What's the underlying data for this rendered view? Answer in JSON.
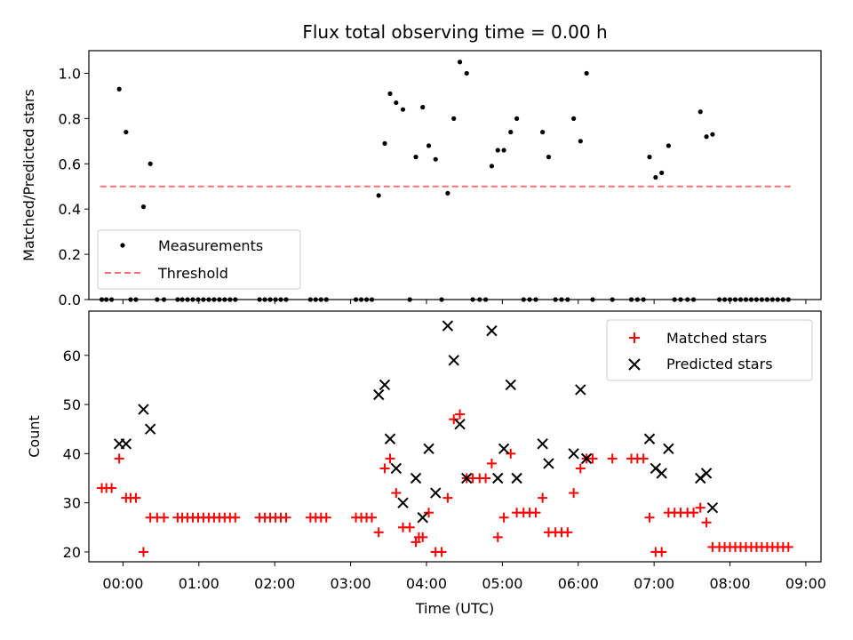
{
  "chart_data": [
    {
      "type": "scatter",
      "title": "Flux total observing time = 0.00 h",
      "xlabel": "",
      "ylabel": "Matched/Predicted stars",
      "xlim": [
        -0.45,
        9.2
      ],
      "ylim": [
        0,
        1.1
      ],
      "yticks": [
        "0.0",
        "0.2",
        "0.4",
        "0.6",
        "0.8",
        "1.0"
      ],
      "legend_position": "lower-left",
      "legend": [
        {
          "label": "Measurements",
          "marker": "dot",
          "color": "#000000"
        },
        {
          "label": "Threshold",
          "marker": "dashed-line",
          "color": "#ff7070"
        }
      ],
      "threshold": {
        "value": 0.5,
        "x_range": [
          -0.3,
          8.8
        ],
        "color": "#ff7070"
      },
      "series": [
        {
          "name": "Measurements",
          "color": "#000000",
          "points": [
            [
              -0.28,
              0
            ],
            [
              -0.22,
              0
            ],
            [
              -0.15,
              0
            ],
            [
              -0.05,
              0.93
            ],
            [
              0.04,
              0.74
            ],
            [
              0.1,
              0
            ],
            [
              0.17,
              0
            ],
            [
              0.27,
              0.41
            ],
            [
              0.36,
              0.6
            ],
            [
              0.45,
              0
            ],
            [
              0.54,
              0
            ],
            [
              0.72,
              0
            ],
            [
              0.78,
              0
            ],
            [
              0.85,
              0
            ],
            [
              0.92,
              0
            ],
            [
              0.99,
              0
            ],
            [
              1.06,
              0
            ],
            [
              1.13,
              0
            ],
            [
              1.2,
              0
            ],
            [
              1.27,
              0
            ],
            [
              1.34,
              0
            ],
            [
              1.41,
              0
            ],
            [
              1.48,
              0
            ],
            [
              1.8,
              0
            ],
            [
              1.87,
              0
            ],
            [
              1.94,
              0
            ],
            [
              2.01,
              0
            ],
            [
              2.08,
              0
            ],
            [
              2.15,
              0
            ],
            [
              2.47,
              0
            ],
            [
              2.54,
              0
            ],
            [
              2.61,
              0
            ],
            [
              2.68,
              0
            ],
            [
              3.07,
              0
            ],
            [
              3.14,
              0
            ],
            [
              3.21,
              0
            ],
            [
              3.28,
              0
            ],
            [
              3.37,
              0.46
            ],
            [
              3.45,
              0.69
            ],
            [
              3.52,
              0.91
            ],
            [
              3.6,
              0.87
            ],
            [
              3.69,
              0.84
            ],
            [
              3.78,
              0
            ],
            [
              3.86,
              0.63
            ],
            [
              3.95,
              0.85
            ],
            [
              4.03,
              0.68
            ],
            [
              4.12,
              0.62
            ],
            [
              4.2,
              0
            ],
            [
              4.28,
              0.47
            ],
            [
              4.36,
              0.8
            ],
            [
              4.44,
              1.05
            ],
            [
              4.53,
              1.0
            ],
            [
              4.61,
              0
            ],
            [
              4.7,
              0
            ],
            [
              4.78,
              0
            ],
            [
              4.86,
              0.59
            ],
            [
              4.94,
              0.66
            ],
            [
              5.02,
              0.66
            ],
            [
              5.11,
              0.74
            ],
            [
              5.19,
              0.8
            ],
            [
              5.28,
              0
            ],
            [
              5.36,
              0
            ],
            [
              5.44,
              0
            ],
            [
              5.53,
              0.74
            ],
            [
              5.61,
              0.63
            ],
            [
              5.7,
              0
            ],
            [
              5.78,
              0
            ],
            [
              5.86,
              0
            ],
            [
              5.94,
              0.8
            ],
            [
              6.03,
              0.7
            ],
            [
              6.11,
              1.0
            ],
            [
              6.19,
              0
            ],
            [
              6.45,
              0
            ],
            [
              6.7,
              0
            ],
            [
              6.78,
              0
            ],
            [
              6.86,
              0
            ],
            [
              6.94,
              0.63
            ],
            [
              7.02,
              0.54
            ],
            [
              7.1,
              0.56
            ],
            [
              7.19,
              0.68
            ],
            [
              7.27,
              0
            ],
            [
              7.35,
              0
            ],
            [
              7.44,
              0
            ],
            [
              7.52,
              0
            ],
            [
              7.61,
              0.83
            ],
            [
              7.69,
              0.72
            ],
            [
              7.77,
              0.73
            ],
            [
              7.86,
              0
            ],
            [
              7.93,
              0
            ],
            [
              8.0,
              0
            ],
            [
              8.07,
              0
            ],
            [
              8.14,
              0
            ],
            [
              8.21,
              0
            ],
            [
              8.28,
              0
            ],
            [
              8.35,
              0
            ],
            [
              8.42,
              0
            ],
            [
              8.49,
              0
            ],
            [
              8.56,
              0
            ],
            [
              8.63,
              0
            ],
            [
              8.7,
              0
            ],
            [
              8.77,
              0
            ]
          ]
        }
      ]
    },
    {
      "type": "scatter",
      "title": "",
      "xlabel": "Time (UTC)",
      "ylabel": "Count",
      "xlim": [
        -0.45,
        9.2
      ],
      "ylim": [
        18,
        69
      ],
      "xticks": [
        {
          "value": 0,
          "label": "00:00"
        },
        {
          "value": 1,
          "label": "01:00"
        },
        {
          "value": 2,
          "label": "02:00"
        },
        {
          "value": 3,
          "label": "03:00"
        },
        {
          "value": 4,
          "label": "04:00"
        },
        {
          "value": 5,
          "label": "05:00"
        },
        {
          "value": 6,
          "label": "06:00"
        },
        {
          "value": 7,
          "label": "07:00"
        },
        {
          "value": 8,
          "label": "08:00"
        },
        {
          "value": 9,
          "label": "09:00"
        }
      ],
      "yticks": [
        "20",
        "30",
        "40",
        "50",
        "60"
      ],
      "legend_position": "upper-right",
      "legend": [
        {
          "label": "Matched stars",
          "marker": "plus",
          "color": "#ff0000"
        },
        {
          "label": "Predicted stars",
          "marker": "x",
          "color": "#000000"
        }
      ],
      "series": [
        {
          "name": "Matched stars",
          "marker": "plus",
          "color": "#ff0000",
          "points": [
            [
              -0.28,
              33
            ],
            [
              -0.22,
              33
            ],
            [
              -0.15,
              33
            ],
            [
              -0.05,
              39
            ],
            [
              0.04,
              31
            ],
            [
              0.1,
              31
            ],
            [
              0.17,
              31
            ],
            [
              0.27,
              20
            ],
            [
              0.36,
              27
            ],
            [
              0.45,
              27
            ],
            [
              0.54,
              27
            ],
            [
              0.72,
              27
            ],
            [
              0.78,
              27
            ],
            [
              0.85,
              27
            ],
            [
              0.92,
              27
            ],
            [
              0.99,
              27
            ],
            [
              1.06,
              27
            ],
            [
              1.13,
              27
            ],
            [
              1.2,
              27
            ],
            [
              1.27,
              27
            ],
            [
              1.34,
              27
            ],
            [
              1.41,
              27
            ],
            [
              1.48,
              27
            ],
            [
              1.8,
              27
            ],
            [
              1.87,
              27
            ],
            [
              1.94,
              27
            ],
            [
              2.01,
              27
            ],
            [
              2.08,
              27
            ],
            [
              2.15,
              27
            ],
            [
              2.47,
              27
            ],
            [
              2.54,
              27
            ],
            [
              2.61,
              27
            ],
            [
              2.68,
              27
            ],
            [
              3.07,
              27
            ],
            [
              3.14,
              27
            ],
            [
              3.21,
              27
            ],
            [
              3.28,
              27
            ],
            [
              3.37,
              24
            ],
            [
              3.45,
              37
            ],
            [
              3.52,
              39
            ],
            [
              3.6,
              32
            ],
            [
              3.69,
              25
            ],
            [
              3.78,
              25
            ],
            [
              3.86,
              22
            ],
            [
              3.9,
              23
            ],
            [
              3.95,
              23
            ],
            [
              4.03,
              28
            ],
            [
              4.12,
              20
            ],
            [
              4.2,
              20
            ],
            [
              4.28,
              31
            ],
            [
              4.36,
              47
            ],
            [
              4.44,
              48
            ],
            [
              4.53,
              35
            ],
            [
              4.61,
              35
            ],
            [
              4.7,
              35
            ],
            [
              4.78,
              35
            ],
            [
              4.86,
              38
            ],
            [
              4.94,
              23
            ],
            [
              5.02,
              27
            ],
            [
              5.11,
              40
            ],
            [
              5.19,
              28
            ],
            [
              5.28,
              28
            ],
            [
              5.36,
              28
            ],
            [
              5.44,
              28
            ],
            [
              5.53,
              31
            ],
            [
              5.61,
              24
            ],
            [
              5.7,
              24
            ],
            [
              5.78,
              24
            ],
            [
              5.86,
              24
            ],
            [
              5.94,
              32
            ],
            [
              6.03,
              37
            ],
            [
              6.11,
              39
            ],
            [
              6.19,
              39
            ],
            [
              6.45,
              39
            ],
            [
              6.7,
              39
            ],
            [
              6.78,
              39
            ],
            [
              6.86,
              39
            ],
            [
              6.94,
              27
            ],
            [
              7.02,
              20
            ],
            [
              7.1,
              20
            ],
            [
              7.19,
              28
            ],
            [
              7.27,
              28
            ],
            [
              7.35,
              28
            ],
            [
              7.44,
              28
            ],
            [
              7.52,
              28
            ],
            [
              7.61,
              29
            ],
            [
              7.69,
              26
            ],
            [
              7.77,
              21
            ],
            [
              7.86,
              21
            ],
            [
              7.93,
              21
            ],
            [
              8.0,
              21
            ],
            [
              8.07,
              21
            ],
            [
              8.14,
              21
            ],
            [
              8.21,
              21
            ],
            [
              8.28,
              21
            ],
            [
              8.35,
              21
            ],
            [
              8.42,
              21
            ],
            [
              8.49,
              21
            ],
            [
              8.56,
              21
            ],
            [
              8.63,
              21
            ],
            [
              8.7,
              21
            ],
            [
              8.77,
              21
            ]
          ]
        },
        {
          "name": "Predicted stars",
          "marker": "x",
          "color": "#000000",
          "points": [
            [
              -0.05,
              42
            ],
            [
              0.04,
              42
            ],
            [
              0.27,
              49
            ],
            [
              0.36,
              45
            ],
            [
              3.37,
              52
            ],
            [
              3.45,
              54
            ],
            [
              3.52,
              43
            ],
            [
              3.6,
              37
            ],
            [
              3.69,
              30
            ],
            [
              3.86,
              35
            ],
            [
              3.95,
              27
            ],
            [
              4.03,
              41
            ],
            [
              4.12,
              32
            ],
            [
              4.28,
              66
            ],
            [
              4.36,
              59
            ],
            [
              4.44,
              46
            ],
            [
              4.53,
              35
            ],
            [
              4.86,
              65
            ],
            [
              4.94,
              35
            ],
            [
              5.02,
              41
            ],
            [
              5.11,
              54
            ],
            [
              5.19,
              35
            ],
            [
              5.53,
              42
            ],
            [
              5.61,
              38
            ],
            [
              5.94,
              40
            ],
            [
              6.03,
              53
            ],
            [
              6.11,
              39
            ],
            [
              6.94,
              43
            ],
            [
              7.02,
              37
            ],
            [
              7.1,
              36
            ],
            [
              7.19,
              41
            ],
            [
              7.61,
              35
            ],
            [
              7.69,
              36
            ],
            [
              7.77,
              29
            ]
          ]
        }
      ]
    }
  ]
}
